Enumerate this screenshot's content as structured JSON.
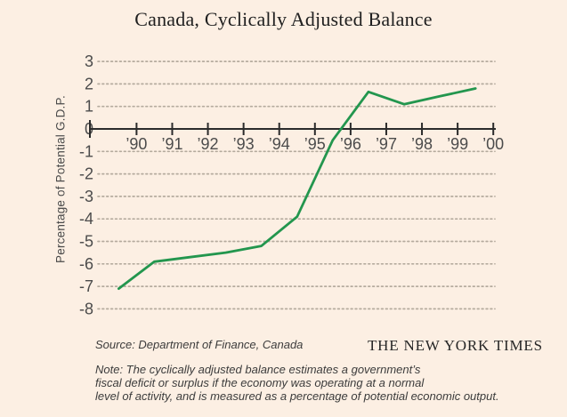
{
  "chart_data": {
    "type": "line",
    "title": "Canada, Cyclically Adjusted Balance",
    "ylabel": "Percentage of Potential G.D.P.",
    "categories": [
      "’90",
      "’91",
      "’92",
      "’93",
      "’94",
      "’95",
      "’96",
      "’97",
      "’98",
      "’99",
      "’00"
    ],
    "values": [
      -7.1,
      -5.9,
      -5.7,
      -5.5,
      -5.2,
      -3.9,
      -0.5,
      1.65,
      1.1,
      1.45,
      1.8
    ],
    "y_ticks": [
      3,
      2,
      1,
      0,
      -1,
      -2,
      -3,
      -4,
      -5,
      -6,
      -7,
      -8
    ],
    "ylim": [
      -8,
      3
    ],
    "grid": "horizontal-dotted",
    "legend": "none",
    "series_name": "Cyclically adjusted balance, percentage of potential G.D.P."
  },
  "footer": {
    "source": "Source: Department of Finance, Canada",
    "credit": "THE NEW YORK TIMES",
    "note_lines": [
      "Note: The cyclically adjusted balance estimates a government’s",
      "fiscal deficit or surplus if the economy was operating at a normal",
      "level of activity, and is measured as a percentage of potential economic output."
    ]
  },
  "colors": {
    "background": "#fcefe3",
    "line": "#23964e",
    "axis": "#2b2b2b",
    "grid_dots": "#b5ab9e",
    "tick_text": "#4b4b4b"
  }
}
